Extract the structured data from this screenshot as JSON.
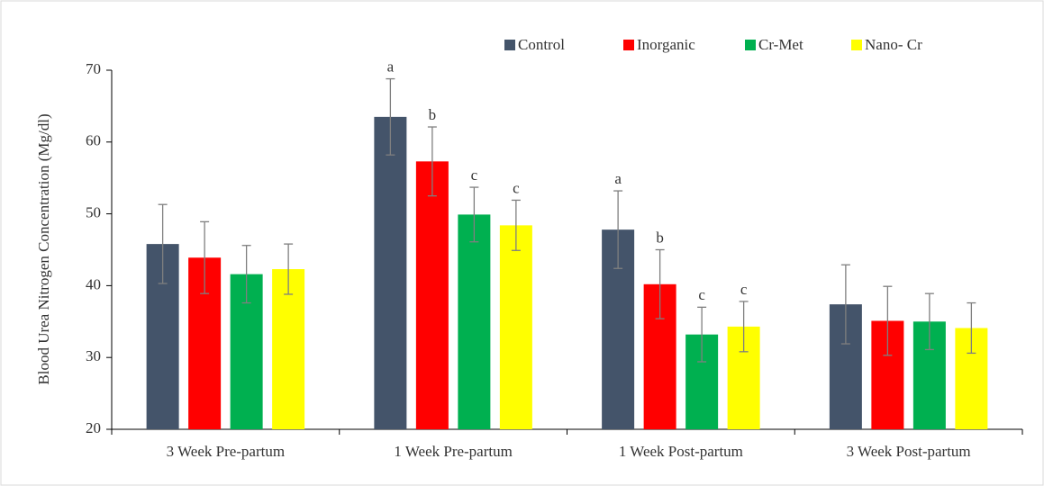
{
  "chart_data": {
    "type": "bar",
    "y_label": "Blood Urea Nitrogen Concentration (Mg/dl)",
    "categories": [
      "3 Week Pre-partum",
      "1 Week Pre-partum",
      "1 Week Post-partum",
      "3 Week Post-partum"
    ],
    "series": [
      {
        "name": "Control",
        "color": "#44546a",
        "values": [
          45.8,
          63.5,
          47.8,
          37.4
        ],
        "errors": [
          5.5,
          5.3,
          5.4,
          5.5
        ],
        "labels": [
          null,
          "a",
          "a",
          null
        ]
      },
      {
        "name": "Inorganic",
        "color": "#ff0000",
        "values": [
          43.9,
          57.3,
          40.2,
          35.1
        ],
        "errors": [
          5.0,
          4.8,
          4.8,
          4.8
        ],
        "labels": [
          null,
          "b",
          "b",
          null
        ]
      },
      {
        "name": "Cr-Met",
        "color": "#00b050",
        "values": [
          41.6,
          49.9,
          33.2,
          35.0
        ],
        "errors": [
          4.0,
          3.8,
          3.8,
          3.9
        ],
        "labels": [
          null,
          "c",
          "c",
          null
        ]
      },
      {
        "name": "Nano- Cr",
        "color": "#ffff00",
        "values": [
          42.3,
          48.4,
          34.3,
          34.1
        ],
        "errors": [
          3.5,
          3.5,
          3.5,
          3.5
        ],
        "labels": [
          null,
          "c",
          "c",
          null
        ]
      }
    ],
    "ylim": [
      20,
      70
    ],
    "yticks": [
      20,
      30,
      40,
      50,
      60,
      70
    ],
    "grid": false,
    "legend": "top-right"
  }
}
